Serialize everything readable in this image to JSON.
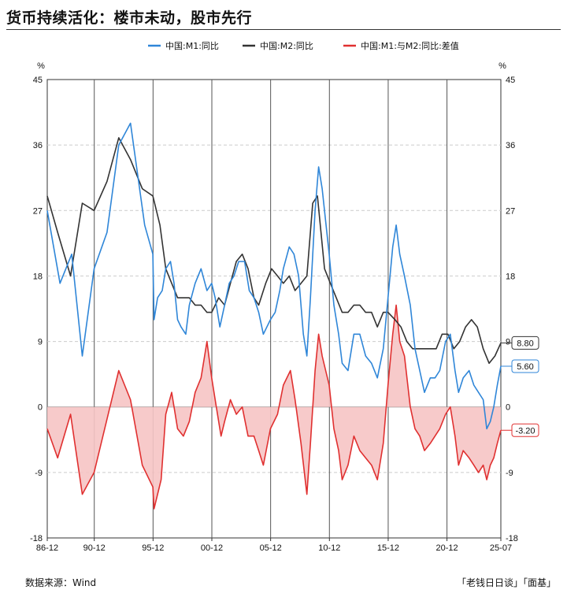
{
  "title": "货币持续活化：楼市未动，股市先行",
  "source": "数据来源：Wind",
  "credit": "「老钱日日谈」「面基」",
  "chart_data": {
    "type": "line",
    "unit_left": "%",
    "unit_right": "%",
    "ylim": [
      -18,
      45
    ],
    "yticks": [
      -18,
      -9,
      0,
      9,
      18,
      27,
      36,
      45
    ],
    "xlim": [
      1986.917,
      2025.5
    ],
    "xticks": [
      {
        "label": "86-12",
        "x": 1986.917
      },
      {
        "label": "90-12",
        "x": 1990.917
      },
      {
        "label": "95-12",
        "x": 1995.917
      },
      {
        "label": "00-12",
        "x": 2000.917
      },
      {
        "label": "05-12",
        "x": 2005.917
      },
      {
        "label": "10-12",
        "x": 2010.917
      },
      {
        "label": "15-12",
        "x": 2015.917
      },
      {
        "label": "20-12",
        "x": 2020.917
      },
      {
        "label": "25-07",
        "x": 2025.5
      }
    ],
    "grid": true,
    "legend_position": "top",
    "series": [
      {
        "name": "中国:M1:同比",
        "color": "#2f86d8",
        "end_label": "5.60",
        "points": [
          [
            1986.92,
            27
          ],
          [
            1988.0,
            17
          ],
          [
            1989.0,
            21
          ],
          [
            1989.9,
            7
          ],
          [
            1990.9,
            19
          ],
          [
            1992.0,
            24
          ],
          [
            1993.0,
            36
          ],
          [
            1994.0,
            39
          ],
          [
            1994.6,
            32
          ],
          [
            1995.2,
            25
          ],
          [
            1995.9,
            21
          ],
          [
            1996.0,
            12
          ],
          [
            1996.3,
            15
          ],
          [
            1996.7,
            16
          ],
          [
            1997.0,
            19
          ],
          [
            1997.4,
            20
          ],
          [
            1997.7,
            17
          ],
          [
            1998.0,
            12
          ],
          [
            1998.3,
            11
          ],
          [
            1998.7,
            10
          ],
          [
            1999.0,
            14
          ],
          [
            1999.5,
            17
          ],
          [
            2000.0,
            19
          ],
          [
            2000.5,
            16
          ],
          [
            2000.9,
            17
          ],
          [
            2001.2,
            15
          ],
          [
            2001.6,
            11
          ],
          [
            2002.0,
            14
          ],
          [
            2002.4,
            17
          ],
          [
            2002.8,
            18
          ],
          [
            2003.2,
            20
          ],
          [
            2003.7,
            20
          ],
          [
            2004.1,
            16
          ],
          [
            2004.5,
            15
          ],
          [
            2004.9,
            13
          ],
          [
            2005.3,
            10
          ],
          [
            2005.9,
            12
          ],
          [
            2006.3,
            13
          ],
          [
            2006.7,
            16
          ],
          [
            2007.0,
            19
          ],
          [
            2007.5,
            22
          ],
          [
            2007.9,
            21
          ],
          [
            2008.3,
            18
          ],
          [
            2008.7,
            10
          ],
          [
            2009.0,
            7
          ],
          [
            2009.3,
            15
          ],
          [
            2009.7,
            27
          ],
          [
            2010.0,
            33
          ],
          [
            2010.3,
            30
          ],
          [
            2010.9,
            21
          ],
          [
            2011.3,
            14
          ],
          [
            2011.7,
            10
          ],
          [
            2012.0,
            6
          ],
          [
            2012.5,
            5
          ],
          [
            2013.0,
            10
          ],
          [
            2013.5,
            10
          ],
          [
            2014.0,
            7
          ],
          [
            2014.5,
            6
          ],
          [
            2015.0,
            4
          ],
          [
            2015.5,
            8
          ],
          [
            2015.9,
            15
          ],
          [
            2016.3,
            22
          ],
          [
            2016.6,
            25
          ],
          [
            2016.9,
            21
          ],
          [
            2017.3,
            18
          ],
          [
            2017.8,
            14
          ],
          [
            2018.2,
            8
          ],
          [
            2018.6,
            5
          ],
          [
            2019.0,
            2
          ],
          [
            2019.5,
            4
          ],
          [
            2019.9,
            4
          ],
          [
            2020.3,
            5
          ],
          [
            2020.8,
            9
          ],
          [
            2021.2,
            10
          ],
          [
            2021.6,
            5
          ],
          [
            2021.9,
            2
          ],
          [
            2022.3,
            4
          ],
          [
            2022.8,
            5
          ],
          [
            2023.2,
            3
          ],
          [
            2023.6,
            2
          ],
          [
            2024.0,
            1
          ],
          [
            2024.3,
            -3
          ],
          [
            2024.6,
            -2
          ],
          [
            2024.9,
            0
          ],
          [
            2025.2,
            3
          ],
          [
            2025.5,
            5.6
          ]
        ]
      },
      {
        "name": "中国:M2:同比",
        "color": "#333333",
        "end_label": "8.80",
        "points": [
          [
            1986.92,
            29
          ],
          [
            1987.8,
            24
          ],
          [
            1988.9,
            18
          ],
          [
            1989.9,
            28
          ],
          [
            1990.9,
            27
          ],
          [
            1992.0,
            31
          ],
          [
            1993.0,
            37
          ],
          [
            1994.0,
            34
          ],
          [
            1995.0,
            30
          ],
          [
            1995.9,
            29
          ],
          [
            1996.5,
            25
          ],
          [
            1997.0,
            19
          ],
          [
            1997.5,
            17
          ],
          [
            1998.0,
            15
          ],
          [
            1998.5,
            15
          ],
          [
            1999.0,
            15
          ],
          [
            1999.5,
            14
          ],
          [
            2000.0,
            14
          ],
          [
            2000.5,
            13
          ],
          [
            2000.9,
            13
          ],
          [
            2001.5,
            15
          ],
          [
            2002.0,
            14
          ],
          [
            2002.5,
            17
          ],
          [
            2003.0,
            20
          ],
          [
            2003.5,
            21
          ],
          [
            2004.0,
            19
          ],
          [
            2004.5,
            15
          ],
          [
            2004.9,
            14
          ],
          [
            2005.5,
            17
          ],
          [
            2006.0,
            19
          ],
          [
            2006.5,
            18
          ],
          [
            2007.0,
            17
          ],
          [
            2007.5,
            18
          ],
          [
            2008.0,
            16
          ],
          [
            2008.5,
            17
          ],
          [
            2009.0,
            18
          ],
          [
            2009.5,
            28
          ],
          [
            2009.9,
            29
          ],
          [
            2010.5,
            19
          ],
          [
            2011.0,
            17
          ],
          [
            2011.5,
            15
          ],
          [
            2012.0,
            13
          ],
          [
            2012.5,
            13
          ],
          [
            2013.0,
            14
          ],
          [
            2013.5,
            14
          ],
          [
            2014.0,
            13
          ],
          [
            2014.5,
            13
          ],
          [
            2015.0,
            11
          ],
          [
            2015.5,
            13
          ],
          [
            2015.9,
            13
          ],
          [
            2016.5,
            12
          ],
          [
            2017.0,
            11
          ],
          [
            2017.5,
            9
          ],
          [
            2018.0,
            8
          ],
          [
            2018.5,
            8
          ],
          [
            2019.0,
            8
          ],
          [
            2019.5,
            8
          ],
          [
            2020.0,
            8
          ],
          [
            2020.5,
            10
          ],
          [
            2021.0,
            10
          ],
          [
            2021.5,
            8
          ],
          [
            2022.0,
            9
          ],
          [
            2022.5,
            11
          ],
          [
            2023.0,
            12
          ],
          [
            2023.5,
            11
          ],
          [
            2024.0,
            8
          ],
          [
            2024.5,
            6
          ],
          [
            2025.0,
            7
          ],
          [
            2025.5,
            8.8
          ]
        ]
      },
      {
        "name": "中国:M1:与M2:同比:差值",
        "color": "#e03030",
        "fill": "#f6c4c4",
        "end_label": "-3.20",
        "points": [
          [
            1986.92,
            -3
          ],
          [
            1987.8,
            -7
          ],
          [
            1988.9,
            -1
          ],
          [
            1989.9,
            -12
          ],
          [
            1990.9,
            -9
          ],
          [
            1993.0,
            5
          ],
          [
            1994.0,
            1
          ],
          [
            1995.0,
            -8
          ],
          [
            1995.9,
            -11
          ],
          [
            1996.0,
            -14
          ],
          [
            1996.3,
            -12
          ],
          [
            1996.6,
            -10
          ],
          [
            1997.0,
            -1
          ],
          [
            1997.5,
            2
          ],
          [
            1998.0,
            -3
          ],
          [
            1998.5,
            -4
          ],
          [
            1999.0,
            -2
          ],
          [
            1999.5,
            2
          ],
          [
            2000.0,
            4
          ],
          [
            2000.5,
            9
          ],
          [
            2000.9,
            4
          ],
          [
            2001.3,
            0
          ],
          [
            2001.7,
            -4
          ],
          [
            2002.0,
            -2
          ],
          [
            2002.5,
            1
          ],
          [
            2003.0,
            -1
          ],
          [
            2003.5,
            0
          ],
          [
            2004.0,
            -4
          ],
          [
            2004.5,
            -4
          ],
          [
            2004.9,
            -6
          ],
          [
            2005.3,
            -8
          ],
          [
            2005.9,
            -3
          ],
          [
            2006.5,
            -1
          ],
          [
            2007.0,
            3
          ],
          [
            2007.6,
            5
          ],
          [
            2008.0,
            1
          ],
          [
            2008.5,
            -5
          ],
          [
            2009.0,
            -12
          ],
          [
            2009.3,
            -5
          ],
          [
            2009.7,
            5
          ],
          [
            2010.0,
            10
          ],
          [
            2010.3,
            7
          ],
          [
            2010.9,
            3
          ],
          [
            2011.3,
            -3
          ],
          [
            2011.7,
            -6
          ],
          [
            2012.0,
            -10
          ],
          [
            2012.5,
            -8
          ],
          [
            2013.0,
            -4
          ],
          [
            2013.5,
            -6
          ],
          [
            2014.0,
            -7
          ],
          [
            2014.5,
            -8
          ],
          [
            2015.0,
            -10
          ],
          [
            2015.5,
            -5
          ],
          [
            2015.9,
            3
          ],
          [
            2016.3,
            10
          ],
          [
            2016.6,
            14
          ],
          [
            2016.9,
            9
          ],
          [
            2017.3,
            7
          ],
          [
            2017.8,
            0
          ],
          [
            2018.2,
            -3
          ],
          [
            2018.6,
            -4
          ],
          [
            2019.0,
            -6
          ],
          [
            2019.5,
            -5
          ],
          [
            2019.9,
            -4
          ],
          [
            2020.3,
            -3
          ],
          [
            2020.8,
            -1
          ],
          [
            2021.2,
            0
          ],
          [
            2021.6,
            -4
          ],
          [
            2021.9,
            -8
          ],
          [
            2022.3,
            -6
          ],
          [
            2022.8,
            -7
          ],
          [
            2023.2,
            -8
          ],
          [
            2023.6,
            -9
          ],
          [
            2024.0,
            -8
          ],
          [
            2024.3,
            -10
          ],
          [
            2024.6,
            -8
          ],
          [
            2024.9,
            -7
          ],
          [
            2025.2,
            -5
          ],
          [
            2025.5,
            -3.2
          ]
        ]
      }
    ]
  }
}
